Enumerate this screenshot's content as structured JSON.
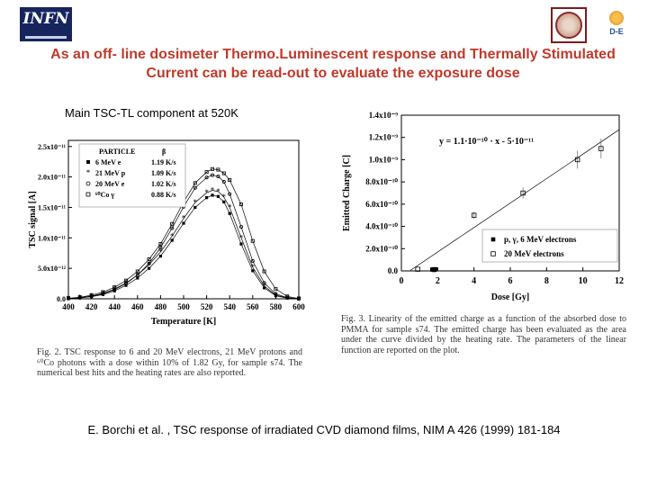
{
  "header": {
    "logo_left": "INFN",
    "logo_right": "D-E"
  },
  "slide": {
    "title_line1": "As an off- line dosimeter Thermo.Luminescent response and Thermally Stimulated",
    "title_line2": "Current  can be read-out  to evaluate the exposure dose",
    "left_figure_label": "Main TSC-TL component at 520K",
    "citation": "E. Borchi et al. , TSC response of irradiated CVD diamond films, NIM A 426 (1999) 181-184"
  },
  "captions": {
    "left": "Fig. 2.  TSC response to 6 and 20 MeV electrons, 21 MeV protons and ⁶⁰Co photons with a dose within 10% of 1.82 Gy, for sample s74. The numerical best hits and the heating rates are also reported.",
    "right": "Fig. 3.  Linearity of the emitted charge as a function of the absorbed dose to PMMA for sample s74. The emitted charge has been evaluated as the area under the curve divided by the heating rate. The parameters of the linear function are reported on the plot."
  },
  "chart_data": [
    {
      "type": "line",
      "xlabel": "Temperature [K]",
      "ylabel": "TSC signal [A]",
      "xlim": [
        400,
        600
      ],
      "ylim": [
        0,
        2.6e-11
      ],
      "x_ticks": [
        "400",
        "420",
        "440",
        "460",
        "480",
        "500",
        "520",
        "540",
        "560",
        "580",
        "600"
      ],
      "y_ticks": [
        "0.0",
        "5.0x10⁻¹²",
        "1.0x10⁻¹¹",
        "1.5x10⁻¹¹",
        "2.0x10⁻¹¹",
        "2.5x10⁻¹¹"
      ],
      "legend": {
        "position": "top-left",
        "header_particle": "PARTICLE",
        "header_rate": "β",
        "entries": [
          {
            "name": "6 MeV  e",
            "rate": "1.19 K/s",
            "marker": "filled-square"
          },
          {
            "name": "21 MeV  p",
            "rate": "1.09 K/s",
            "marker": "star"
          },
          {
            "name": "20 MeV  e",
            "rate": "1.02 K/s",
            "marker": "circle"
          },
          {
            "name": "⁶⁰Co  γ",
            "rate": "0.88 K/s",
            "marker": "square"
          }
        ]
      },
      "x": [
        400,
        410,
        420,
        430,
        440,
        450,
        460,
        470,
        480,
        490,
        500,
        510,
        520,
        525,
        530,
        535,
        540,
        550,
        560,
        570,
        580,
        590,
        600
      ],
      "series": [
        {
          "name": "6 MeV  e",
          "values": [
            0.05,
            0.15,
            0.35,
            0.7,
            1.3,
            2.2,
            3.4,
            5.0,
            7.0,
            9.6,
            12.4,
            15.0,
            16.6,
            17.0,
            16.8,
            15.9,
            14.0,
            9.0,
            4.6,
            1.8,
            0.5,
            0.1,
            0.0
          ]
        },
        {
          "name": "21 MeV  p",
          "values": [
            0.05,
            0.2,
            0.45,
            0.9,
            1.6,
            2.6,
            3.9,
            5.6,
            7.7,
            10.3,
            13.2,
            15.8,
            17.4,
            17.8,
            17.6,
            16.7,
            15.0,
            10.0,
            5.2,
            2.1,
            0.6,
            0.15,
            0.0
          ]
        },
        {
          "name": "20 MeV  e",
          "values": [
            0.05,
            0.15,
            0.4,
            0.8,
            1.5,
            2.5,
            3.9,
            5.8,
            8.4,
            11.6,
            15.1,
            18.2,
            19.9,
            20.3,
            20.1,
            19.2,
            17.2,
            11.8,
            6.2,
            2.6,
            0.8,
            0.2,
            0.0
          ]
        },
        {
          "name": "⁶⁰Co  γ",
          "values": [
            0.1,
            0.25,
            0.6,
            1.1,
            1.9,
            3.0,
            4.5,
            6.5,
            9.0,
            12.3,
            15.9,
            19.0,
            20.8,
            21.3,
            21.2,
            20.6,
            19.5,
            15.5,
            9.5,
            4.5,
            1.6,
            0.4,
            0.05
          ]
        }
      ]
    },
    {
      "type": "scatter",
      "xlabel": "Dose [Gy]",
      "ylabel": "Emitted Charge [C]",
      "xlim": [
        0,
        12
      ],
      "ylim": [
        0,
        1.4e-09
      ],
      "x_ticks": [
        "0",
        "2",
        "4",
        "6",
        "8",
        "10",
        "12"
      ],
      "y_ticks": [
        "0.0",
        "2.0x10⁻¹⁰",
        "4.0x10⁻¹⁰",
        "6.0x10⁻¹⁰",
        "8.0x10⁻¹⁰",
        "1.0x10⁻⁹",
        "1.2x10⁻⁹",
        "1.4x10⁻⁹"
      ],
      "annotation": "y = 1.1·10⁻¹⁰ · x - 5·10⁻¹¹",
      "fit": {
        "slope": 1.1e-10,
        "intercept": -5e-11
      },
      "legend": {
        "position": "bottom-right",
        "entries": [
          "p, γ, 6 MeV electrons",
          "20 MeV electrons"
        ]
      },
      "series": [
        {
          "name": "p, γ, 6 MeV electrons",
          "marker": "filled-square",
          "points": [
            [
              1.7,
              1.2e-11
            ],
            [
              1.8,
              1e-11
            ],
            [
              1.9,
              1.4e-11
            ]
          ]
        },
        {
          "name": "20 MeV electrons",
          "marker": "open-square",
          "points": [
            [
              0.9,
              1.5e-11
            ],
            [
              1.8,
              1.2e-11
            ],
            [
              4.0,
              5e-10
            ],
            [
              6.7,
              7e-10
            ],
            [
              9.7,
              1e-09
            ],
            [
              11.0,
              1.1e-09
            ]
          ],
          "errors": [
            1e-12,
            1e-12,
            3e-11,
            5e-11,
            8e-11,
            9e-11
          ]
        }
      ]
    }
  ]
}
